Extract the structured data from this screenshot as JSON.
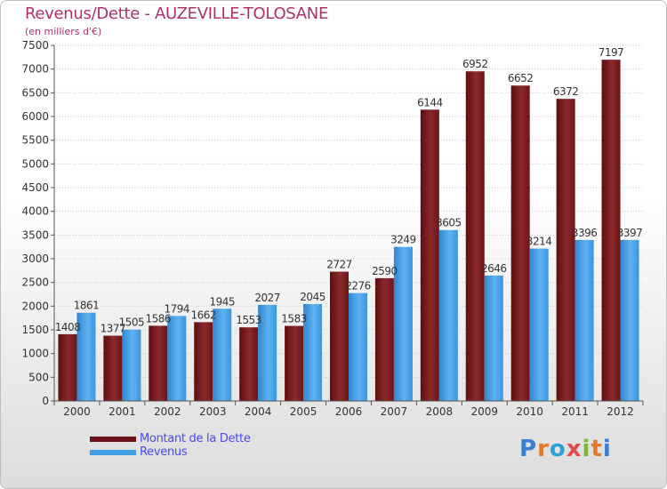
{
  "header": {
    "title": "Revenus/Dette - AUZEVILLE-TOLOSANE",
    "subtitle": "(en milliers d'€)"
  },
  "legend": {
    "debt_label": "Montant de la Dette",
    "revenue_label": "Revenus"
  },
  "logo": {
    "text": "Proxiti",
    "letters": [
      "P",
      "r",
      "o",
      "x",
      "i",
      "t",
      "i"
    ]
  },
  "colors": {
    "debt": "#7a1a1c",
    "revenue": "#3f9ee6",
    "title": "#b0306a",
    "legend_text": "#4a4aee",
    "logo_letters": [
      "#3a7fd4",
      "#e7792b",
      "#2ea0d8",
      "#e24a4a",
      "#78b737",
      "#e7792b",
      "#3a7fd4"
    ]
  },
  "chart_data": {
    "type": "bar",
    "title": "Revenus/Dette - AUZEVILLE-TOLOSANE",
    "ylabel": "(en milliers d'€)",
    "xlabel": "",
    "categories": [
      "2000",
      "2001",
      "2002",
      "2003",
      "2004",
      "2005",
      "2006",
      "2007",
      "2008",
      "2009",
      "2010",
      "2011",
      "2012"
    ],
    "series": [
      {
        "name": "Montant de la Dette",
        "values": [
          1408,
          1377,
          1586,
          1662,
          1553,
          1583,
          2727,
          2590,
          6144,
          6952,
          6652,
          6372,
          7197
        ]
      },
      {
        "name": "Revenus",
        "values": [
          1861,
          1505,
          1794,
          1945,
          2027,
          2045,
          2276,
          3249,
          3605,
          2646,
          3214,
          3396,
          3397
        ]
      }
    ],
    "ylim": [
      0,
      7500
    ],
    "yticks": [
      0,
      500,
      1000,
      1500,
      2000,
      2500,
      3000,
      3500,
      4000,
      4500,
      5000,
      5500,
      6000,
      6500,
      7000,
      7500
    ],
    "grid": true,
    "legend_position": "bottom-left"
  }
}
